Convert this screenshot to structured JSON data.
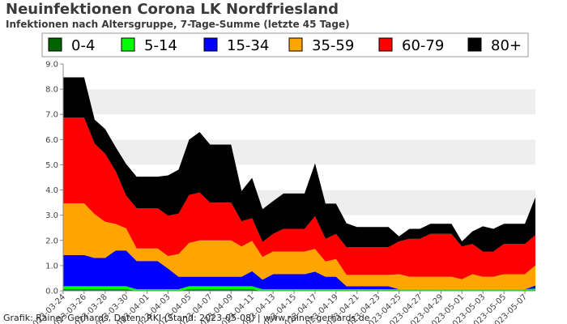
{
  "title": "Neuinfektionen Corona LK Nordfriesland",
  "subtitle": "Infektionen nach Altersgruppe, 7-Tage-Summe (letzte 45 Tage)",
  "credit": "Grafik: Rainer Gerhards, Daten: RKI (Stand: 2023-05-08) | www.rainer-gerhards.de",
  "chart_data": {
    "type": "area",
    "stacked": true,
    "xlabel": "",
    "ylabel": "",
    "ylim": [
      0,
      9
    ],
    "yticks": [
      "0.0",
      "1.0",
      "2.0",
      "3.0",
      "4.0",
      "5.0",
      "6.0",
      "7.0",
      "8.0",
      "9.0"
    ],
    "x": [
      "2023-03-24",
      "2023-03-25",
      "2023-03-26",
      "2023-03-27",
      "2023-03-28",
      "2023-03-29",
      "2023-03-30",
      "2023-03-31",
      "2023-04-01",
      "2023-04-02",
      "2023-04-03",
      "2023-04-04",
      "2023-04-05",
      "2023-04-06",
      "2023-04-07",
      "2023-04-08",
      "2023-04-09",
      "2023-04-10",
      "2023-04-11",
      "2023-04-12",
      "2023-04-13",
      "2023-04-14",
      "2023-04-15",
      "2023-04-16",
      "2023-04-17",
      "2023-04-18",
      "2023-04-19",
      "2023-04-20",
      "2023-04-21",
      "2023-04-22",
      "2023-04-23",
      "2023-04-24",
      "2023-04-25",
      "2023-04-26",
      "2023-04-27",
      "2023-04-28",
      "2023-04-29",
      "2023-04-30",
      "2023-05-01",
      "2023-05-02",
      "2023-05-03",
      "2023-05-04",
      "2023-05-05",
      "2023-05-06",
      "2023-05-07",
      "2023-05-08"
    ],
    "xtick_labels": [
      "2023-03-24",
      "2023-03-26",
      "2023-03-28",
      "2023-03-30",
      "2023-04-01",
      "2023-04-03",
      "2023-04-05",
      "2023-04-07",
      "2023-04-09",
      "2023-04-11",
      "2023-04-13",
      "2023-04-15",
      "2023-04-17",
      "2023-04-19",
      "2023-04-21",
      "2023-04-23",
      "2023-04-25",
      "2023-04-27",
      "2023-04-29",
      "2023-05-01",
      "2023-05-03",
      "2023-05-05",
      "2023-05-07"
    ],
    "grid": "horizontal bands",
    "legend": "top",
    "series": [
      {
        "name": "0-4",
        "color": "#006400",
        "values": [
          0.06,
          0.06,
          0.06,
          0.06,
          0.06,
          0.06,
          0.06,
          0,
          0,
          0,
          0,
          0,
          0.06,
          0.06,
          0.06,
          0.06,
          0.06,
          0.06,
          0.06,
          0,
          0,
          0,
          0,
          0,
          0,
          0,
          0,
          0,
          0,
          0,
          0,
          0,
          0,
          0,
          0,
          0,
          0,
          0,
          0,
          0,
          0,
          0,
          0,
          0,
          0,
          0.03
        ]
      },
      {
        "name": "5-14",
        "color": "#00ff00",
        "values": [
          0.12,
          0.12,
          0.12,
          0.12,
          0.12,
          0.12,
          0.12,
          0.06,
          0.06,
          0.06,
          0.06,
          0.06,
          0.12,
          0.12,
          0.12,
          0.12,
          0.12,
          0.12,
          0.12,
          0.06,
          0.06,
          0.06,
          0.06,
          0.06,
          0.06,
          0.06,
          0.06,
          0.06,
          0.06,
          0.06,
          0.06,
          0.06,
          0.06,
          0.06,
          0.06,
          0.06,
          0.06,
          0.06,
          0.06,
          0.06,
          0.06,
          0.06,
          0.06,
          0.06,
          0.06,
          0.06
        ]
      },
      {
        "name": "15-34",
        "color": "#0000ff",
        "values": [
          1.24,
          1.24,
          1.24,
          1.12,
          1.12,
          1.42,
          1.42,
          1.12,
          1.12,
          1.12,
          0.82,
          0.5,
          0.38,
          0.38,
          0.38,
          0.38,
          0.38,
          0.38,
          0.6,
          0.38,
          0.6,
          0.6,
          0.6,
          0.6,
          0.7,
          0.5,
          0.5,
          0.12,
          0.12,
          0.12,
          0.12,
          0.12,
          0,
          0,
          0,
          0,
          0,
          0,
          0,
          0,
          0,
          0,
          0,
          0,
          0,
          0.12
        ]
      },
      {
        "name": "35-59",
        "color": "#ffa500",
        "values": [
          2.05,
          2.05,
          2.05,
          1.74,
          1.44,
          1.05,
          0.88,
          0.5,
          0.5,
          0.5,
          0.5,
          0.9,
          1.34,
          1.44,
          1.44,
          1.44,
          1.44,
          1.2,
          1.2,
          0.9,
          0.9,
          0.9,
          0.9,
          0.9,
          0.9,
          0.6,
          0.7,
          0.45,
          0.45,
          0.45,
          0.45,
          0.45,
          0.6,
          0.5,
          0.5,
          0.5,
          0.5,
          0.5,
          0.4,
          0.6,
          0.5,
          0.5,
          0.6,
          0.6,
          0.6,
          0.8
        ]
      },
      {
        "name": "60-79",
        "color": "#ff0000",
        "values": [
          3.4,
          3.4,
          3.4,
          2.8,
          2.7,
          2.1,
          1.3,
          1.6,
          1.6,
          1.6,
          1.6,
          1.6,
          1.9,
          1.9,
          1.5,
          1.5,
          1.5,
          1.0,
          0.9,
          0.6,
          0.7,
          0.9,
          0.9,
          0.9,
          1.3,
          0.9,
          1.0,
          1.1,
          1.1,
          1.1,
          1.1,
          1.1,
          1.3,
          1.5,
          1.5,
          1.7,
          1.7,
          1.7,
          1.3,
          1.2,
          1.0,
          1.0,
          1.2,
          1.2,
          1.2,
          1.2
        ]
      },
      {
        "name": "80+",
        "color": "#000000",
        "values": [
          1.6,
          1.6,
          1.6,
          0.95,
          0.98,
          0.95,
          1.25,
          1.25,
          1.25,
          1.25,
          1.6,
          1.75,
          2.2,
          2.4,
          2.3,
          2.3,
          2.3,
          1.2,
          1.6,
          1.3,
          1.3,
          1.4,
          1.4,
          1.4,
          2.1,
          1.4,
          1.2,
          0.95,
          0.8,
          0.8,
          0.8,
          0.8,
          0.2,
          0.4,
          0.4,
          0.4,
          0.4,
          0.4,
          0.2,
          0.5,
          1.0,
          0.9,
          0.8,
          0.8,
          0.8,
          1.5
        ]
      }
    ]
  }
}
